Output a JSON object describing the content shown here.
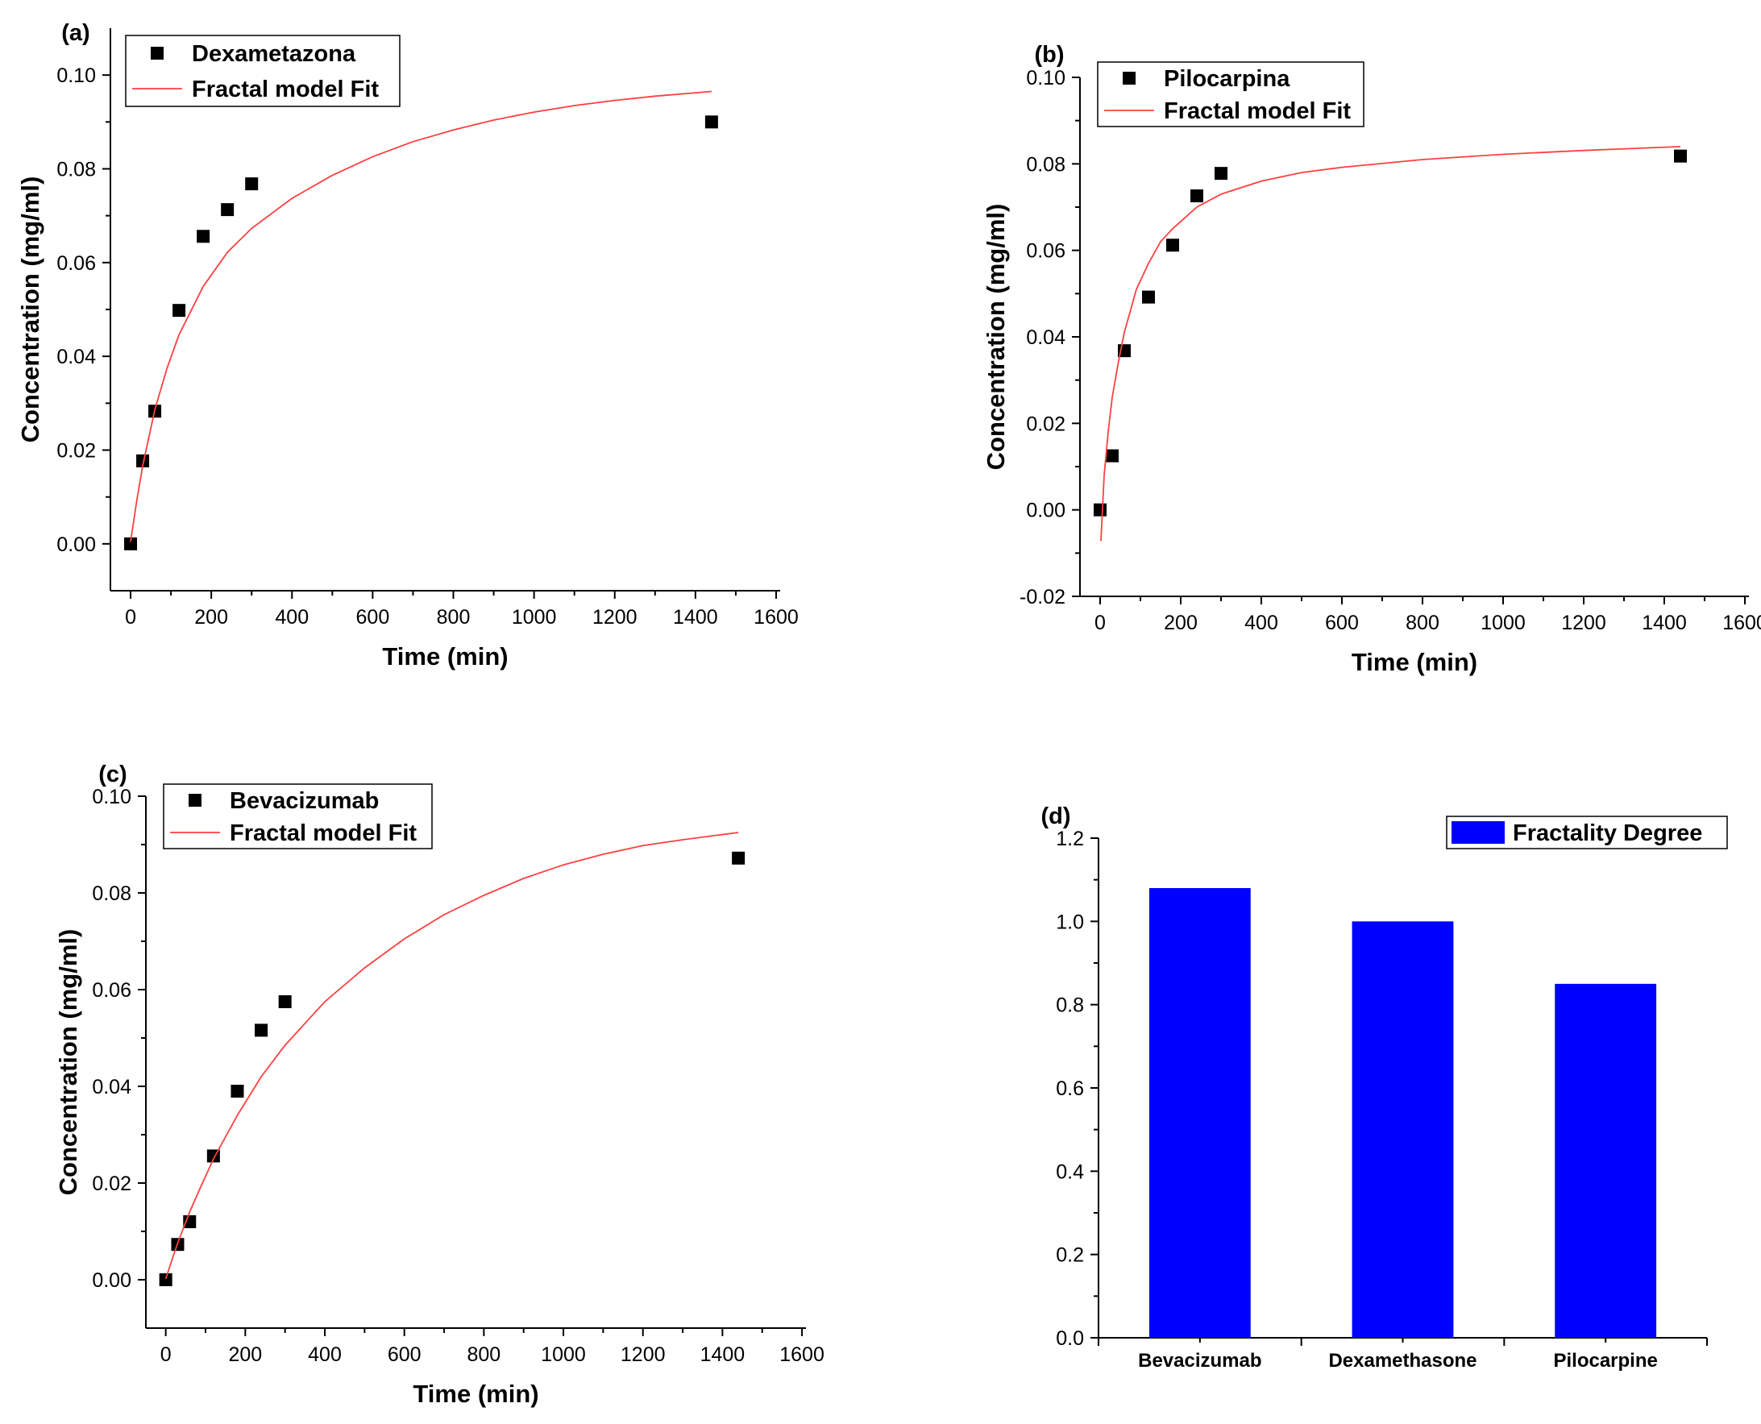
{
  "chart_data": [
    {
      "id": "a",
      "type": "scatter",
      "panel_label": "(a)",
      "xlabel": "Time (min)",
      "ylabel": "Concentration (mg/ml)",
      "xlim": [
        -50,
        1610
      ],
      "ylim": [
        -0.01,
        0.11
      ],
      "xticks": [
        0,
        200,
        400,
        600,
        800,
        1000,
        1200,
        1400,
        1600
      ],
      "yticks": [
        0.0,
        0.02,
        0.04,
        0.06,
        0.08,
        0.1
      ],
      "xtick_labels": [
        "0",
        "200",
        "400",
        "600",
        "800",
        "1000",
        "1200",
        "1400",
        "1600"
      ],
      "ytick_labels": [
        "0.00",
        "0.02",
        "0.04",
        "0.06",
        "0.08",
        "0.10"
      ],
      "series": [
        {
          "name": "Dexametazona",
          "kind": "scatter",
          "color": "#000000",
          "x": [
            0,
            30,
            60,
            120,
            180,
            240,
            300,
            1440
          ],
          "y": [
            0.0,
            0.0177,
            0.0283,
            0.0498,
            0.0656,
            0.0713,
            0.0768,
            0.09
          ]
        },
        {
          "name": "Fractal model Fit",
          "kind": "line",
          "color": "#ff4040",
          "x": [
            0,
            15,
            30,
            60,
            90,
            120,
            180,
            240,
            300,
            400,
            500,
            600,
            700,
            800,
            900,
            1000,
            1100,
            1200,
            1300,
            1440
          ],
          "y": [
            0.0004,
            0.009,
            0.0166,
            0.0286,
            0.0374,
            0.0446,
            0.0549,
            0.0622,
            0.0673,
            0.0737,
            0.0786,
            0.0826,
            0.0858,
            0.0883,
            0.0904,
            0.0921,
            0.0935,
            0.0946,
            0.0955,
            0.0965
          ]
        }
      ],
      "legend_position": "top-left"
    },
    {
      "id": "b",
      "type": "scatter",
      "panel_label": "(b)",
      "xlabel": "Time (min)",
      "ylabel": "Concentration (mg/ml)",
      "xlim": [
        -50,
        1610
      ],
      "ylim": [
        -0.02,
        0.1
      ],
      "xticks": [
        0,
        200,
        400,
        600,
        800,
        1000,
        1200,
        1400,
        1600
      ],
      "yticks": [
        -0.02,
        0.0,
        0.02,
        0.04,
        0.06,
        0.08,
        0.1
      ],
      "xtick_labels": [
        "0",
        "200",
        "400",
        "600",
        "800",
        "1000",
        "1200",
        "1400",
        "1600"
      ],
      "ytick_labels": [
        "-0.02",
        "0.00",
        "0.02",
        "0.04",
        "0.06",
        "0.08",
        "0.10"
      ],
      "series": [
        {
          "name": "Pilocarpina",
          "kind": "scatter",
          "color": "#000000",
          "x": [
            0,
            30,
            60,
            120,
            180,
            240,
            300,
            1440
          ],
          "y": [
            0.0,
            0.0125,
            0.0368,
            0.0492,
            0.0612,
            0.0726,
            0.0778,
            0.0818
          ]
        },
        {
          "name": "Fractal model Fit",
          "kind": "line",
          "color": "#ff4040",
          "x": [
            2,
            10,
            20,
            30,
            45,
            60,
            90,
            120,
            150,
            180,
            240,
            300,
            400,
            500,
            600,
            800,
            1000,
            1200,
            1440
          ],
          "y": [
            -0.0072,
            0.008,
            0.018,
            0.026,
            0.034,
            0.041,
            0.051,
            0.057,
            0.062,
            0.065,
            0.07,
            0.073,
            0.076,
            0.078,
            0.0792,
            0.081,
            0.0822,
            0.0831,
            0.084
          ]
        }
      ],
      "legend_position": "top-left"
    },
    {
      "id": "c",
      "type": "scatter",
      "panel_label": "(c)",
      "xlabel": "Time (min)",
      "ylabel": "Concentration (mg/ml)",
      "xlim": [
        -50,
        1610
      ],
      "ylim": [
        -0.01,
        0.1
      ],
      "xticks": [
        0,
        200,
        400,
        600,
        800,
        1000,
        1200,
        1400,
        1600
      ],
      "yticks": [
        0.0,
        0.02,
        0.04,
        0.06,
        0.08,
        0.1
      ],
      "xtick_labels": [
        "0",
        "200",
        "400",
        "600",
        "800",
        "1000",
        "1200",
        "1400",
        "1600"
      ],
      "ytick_labels": [
        "0.00",
        "0.02",
        "0.04",
        "0.06",
        "0.08",
        "0.10"
      ],
      "series": [
        {
          "name": "Bevacizumab",
          "kind": "scatter",
          "color": "#000000",
          "x": [
            0,
            30,
            60,
            120,
            180,
            240,
            300,
            1440
          ],
          "y": [
            0.0,
            0.0073,
            0.012,
            0.0256,
            0.039,
            0.0516,
            0.0575,
            0.0872
          ]
        },
        {
          "name": "Fractal model Fit",
          "kind": "line",
          "color": "#ff4040",
          "x": [
            0,
            15,
            30,
            60,
            90,
            120,
            180,
            240,
            300,
            400,
            500,
            600,
            700,
            800,
            900,
            1000,
            1100,
            1200,
            1300,
            1440
          ],
          "y": [
            0.0002,
            0.004,
            0.0076,
            0.014,
            0.0196,
            0.025,
            0.034,
            0.042,
            0.0485,
            0.0575,
            0.0645,
            0.0705,
            0.0755,
            0.0795,
            0.083,
            0.0858,
            0.088,
            0.0898,
            0.091,
            0.0925
          ]
        }
      ],
      "legend_position": "top-left"
    },
    {
      "id": "d",
      "type": "bar",
      "panel_label": "(d)",
      "xlabel": "",
      "ylabel": "",
      "ylim": [
        0.0,
        1.2
      ],
      "yticks": [
        0.0,
        0.2,
        0.4,
        0.6,
        0.8,
        1.0,
        1.2
      ],
      "ytick_labels": [
        "0.0",
        "0.2",
        "0.4",
        "0.6",
        "0.8",
        "1.0",
        "1.2"
      ],
      "categories": [
        "Bevacizumab",
        "Dexamethasone",
        "Pilocarpine"
      ],
      "series": [
        {
          "name": "Fractality Degree",
          "color": "#0000ff",
          "values": [
            1.08,
            1.0,
            0.85
          ]
        }
      ],
      "legend_position": "top-right"
    }
  ]
}
